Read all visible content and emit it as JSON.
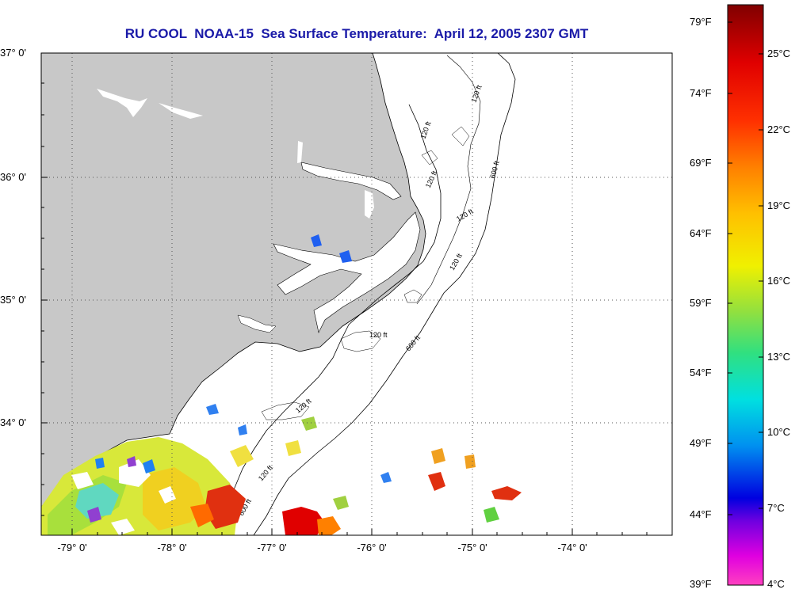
{
  "title": "RU COOL  NOAA-15  Sea Surface Temperature:  April 12, 2005 2307 GMT",
  "lat_labels": [
    "37° 0'",
    "36° 0'",
    "35° 0'",
    "34° 0'"
  ],
  "lon_labels": [
    "-79° 0'",
    "-78° 0'",
    "-77° 0'",
    "-76° 0'",
    "-75° 0'",
    "-74° 0'"
  ],
  "depth_labels": [
    "120 ft",
    "120 ft",
    "120 ft",
    "600 ft",
    "120 ft",
    "120 ft",
    "120 ft",
    "600 ft",
    "120 ft",
    "120 ft",
    "600 ft"
  ],
  "colorbar": {
    "fahrenheit_labels": [
      "79°F",
      "74°F",
      "69°F",
      "64°F",
      "59°F",
      "54°F",
      "49°F",
      "44°F",
      "39°F"
    ],
    "celsius_labels": [
      "25°C",
      "22°C",
      "19°C",
      "16°C",
      "13°C",
      "10°C",
      "7°C",
      "4°C"
    ]
  },
  "colors": {
    "title": "#1a1aa8",
    "land": "#c8c8c8",
    "ocean": "#ffffff",
    "grid": "#555555"
  }
}
